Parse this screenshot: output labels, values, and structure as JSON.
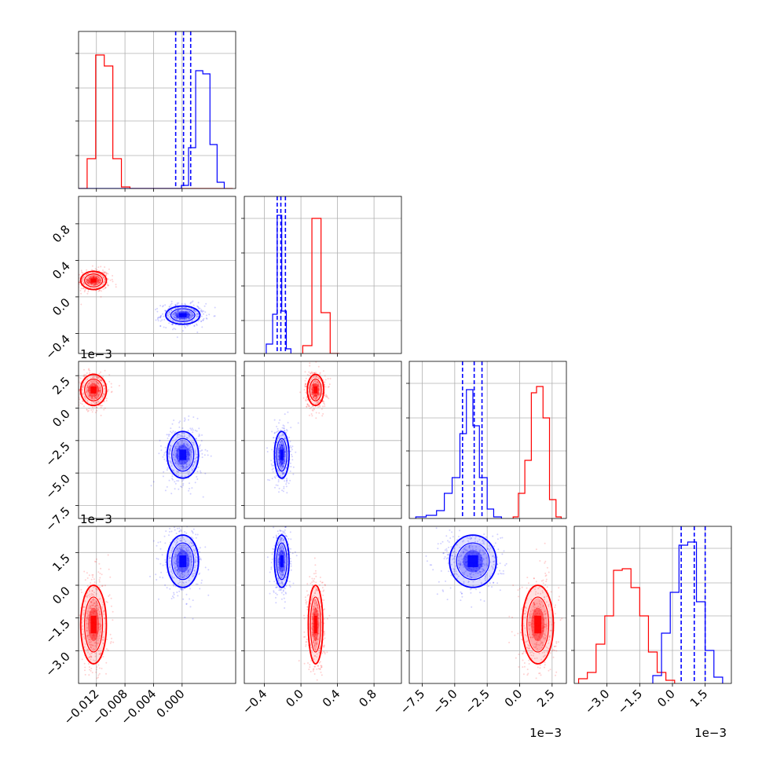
{
  "chart_data": {
    "type": "corner",
    "dimensions": 4,
    "grid": true,
    "colors": {
      "red": "#ff0000",
      "blue": "#0000ff",
      "grid": "#b0b0b0"
    },
    "diagonal": [
      {
        "xlim": [
          -0.0145,
          0.0075
        ],
        "bins_x": [
          -0.0145,
          -0.0133,
          -0.0121,
          -0.0109,
          -0.0097,
          -0.0085,
          -0.0073,
          -0.0061,
          -0.0049,
          -0.0037,
          -0.0025,
          -0.0013,
          -0.0001,
          0.0011,
          0.0023,
          0.0035,
          0.0047,
          0.0059,
          0.0071
        ],
        "red_counts": [
          0,
          0.19,
          0.85,
          0.78,
          0.19,
          0.01,
          0,
          0,
          0,
          0,
          0,
          0,
          0,
          0,
          0,
          0,
          0,
          0
        ],
        "blue_counts": [
          0,
          0,
          0,
          0,
          0,
          0,
          0,
          0,
          0,
          0,
          0,
          0,
          0,
          0.02,
          0.26,
          0.75,
          0.73,
          0.28,
          0.04
        ],
        "blue_bins_x": [
          -0.0145,
          -0.0133,
          -0.0121,
          -0.0109,
          -0.0097,
          -0.0085,
          -0.0073,
          -0.0061,
          -0.0049,
          -0.0037,
          -0.0025,
          -0.0021,
          -0.0011,
          -0.0001,
          0.0009,
          0.0019,
          0.0029,
          0.0039,
          0.0049,
          0.0059
        ],
        "quantiles": [
          -0.0009,
          0.0002,
          0.0012
        ]
      },
      {
        "xlim": [
          -0.62,
          1.1
        ],
        "red_hist": {
          "edges": [
            0.02,
            0.12,
            0.22,
            0.32,
            0.42
          ],
          "counts": [
            0.05,
            0.86,
            0.26,
            0
          ]
        },
        "blue_hist": {
          "edges": [
            -0.38,
            -0.31,
            -0.26,
            -0.21,
            -0.16,
            -0.11
          ],
          "counts": [
            0.06,
            0.25,
            0.88,
            0.27,
            0.03
          ]
        },
        "quantiles": [
          -0.26,
          -0.22,
          -0.17
        ]
      },
      {
        "xlim": [
          -0.0085,
          0.0036
        ],
        "red_hist": {
          "edges": [
            -0.0005,
            -0.0001,
            0.0004,
            0.0009,
            0.0013,
            0.0018,
            0.0023,
            0.0028,
            0.0032
          ],
          "counts": [
            0.01,
            0.16,
            0.37,
            0.8,
            0.84,
            0.64,
            0.12,
            0.01
          ]
        },
        "blue_hist": {
          "edges": [
            -0.008,
            -0.0072,
            -0.0064,
            -0.0058,
            -0.0052,
            -0.0046,
            -0.0041,
            -0.0036,
            -0.0031,
            -0.0025,
            -0.002,
            -0.0014
          ],
          "counts": [
            0.01,
            0.02,
            0.05,
            0.16,
            0.26,
            0.54,
            0.82,
            0.59,
            0.26,
            0.06,
            0.01
          ]
        },
        "quantiles": [
          -0.0044,
          -0.0035,
          -0.0029
        ]
      },
      {
        "xlim": [
          -0.0045,
          0.0027
        ],
        "red_hist": {
          "edges": [
            -0.0043,
            -0.0039,
            -0.0035,
            -0.0031,
            -0.0027,
            -0.0023,
            -0.0019,
            -0.0015,
            -0.0011,
            -0.0007,
            -0.0003,
            0.0001
          ],
          "counts": [
            0.03,
            0.07,
            0.25,
            0.43,
            0.72,
            0.73,
            0.61,
            0.43,
            0.2,
            0.07,
            0.02
          ]
        },
        "blue_hist": {
          "edges": [
            -0.0009,
            -0.0005,
            -0.0001,
            0.0003,
            0.0007,
            0.0011,
            0.0015,
            0.0019,
            0.0023
          ],
          "counts": [
            0.05,
            0.32,
            0.58,
            0.88,
            0.9,
            0.52,
            0.21,
            0.04
          ]
        },
        "quantiles": [
          0.0004,
          0.001,
          0.0015
        ]
      }
    ],
    "pairs": [
      {
        "row": 1,
        "col": 0,
        "red": {
          "mean": [
            -0.0124,
            0.18
          ],
          "std": [
            0.0009,
            0.05
          ],
          "rho": 0
        },
        "blue": {
          "mean": [
            0.0001,
            -0.2
          ],
          "std": [
            0.0012,
            0.05
          ],
          "rho": 0
        }
      },
      {
        "row": 2,
        "col": 0,
        "red": {
          "mean": [
            -0.0124,
            0.0014
          ],
          "std": [
            0.0009,
            0.0006
          ],
          "rho": 0
        },
        "blue": {
          "mean": [
            0.0001,
            -0.0036
          ],
          "std": [
            0.0011,
            0.0009
          ],
          "rho": 0
        }
      },
      {
        "row": 2,
        "col": 1,
        "red": {
          "mean": [
            0.16,
            0.0014
          ],
          "std": [
            0.045,
            0.0006
          ],
          "rho": 0
        },
        "blue": {
          "mean": [
            -0.21,
            -0.0036
          ],
          "std": [
            0.04,
            0.0009
          ],
          "rho": 0
        }
      },
      {
        "row": 3,
        "col": 0,
        "red": {
          "mean": [
            -0.0124,
            -0.0018
          ],
          "std": [
            0.0009,
            0.0009
          ],
          "rho": 0
        },
        "blue": {
          "mean": [
            0.0001,
            0.0011
          ],
          "std": [
            0.0011,
            0.0006
          ],
          "rho": 0
        }
      },
      {
        "row": 3,
        "col": 1,
        "red": {
          "mean": [
            0.16,
            -0.0018
          ],
          "std": [
            0.04,
            0.0009
          ],
          "rho": 0
        },
        "blue": {
          "mean": [
            -0.21,
            0.0011
          ],
          "std": [
            0.04,
            0.0006
          ],
          "rho": 0
        }
      },
      {
        "row": 3,
        "col": 2,
        "red": {
          "mean": [
            0.0014,
            -0.0018
          ],
          "std": [
            0.0006,
            0.0009
          ],
          "rho": 0
        },
        "blue": {
          "mean": [
            -0.0036,
            0.0011
          ],
          "std": [
            0.0009,
            0.0006
          ],
          "rho": 0
        }
      }
    ],
    "axes": {
      "x": [
        {
          "lim": [
            -0.0145,
            0.0075
          ],
          "ticks": [
            -0.012,
            -0.008,
            -0.004,
            0.0
          ],
          "labels": [
            "−0.012",
            "−0.008",
            "−0.004",
            "0.000"
          ],
          "offset": ""
        },
        {
          "lim": [
            -0.62,
            1.1
          ],
          "ticks": [
            -0.4,
            0.0,
            0.4,
            0.8
          ],
          "labels": [
            "−0.4",
            "0.0",
            "0.4",
            "0.8"
          ],
          "offset": ""
        },
        {
          "lim": [
            -0.0085,
            0.0036
          ],
          "ticks": [
            -0.0075,
            -0.005,
            -0.0025,
            0.0,
            0.0025
          ],
          "labels": [
            "−7.5",
            "−5.0",
            "−2.5",
            "0.0",
            "2.5"
          ],
          "offset": "1e−3"
        },
        {
          "lim": [
            -0.0045,
            0.0027
          ],
          "ticks": [
            -0.003,
            -0.0015,
            0.0,
            0.0015
          ],
          "labels": [
            "−3.0",
            "−1.5",
            "0.0",
            "1.5"
          ],
          "offset": "1e−3"
        }
      ],
      "y": [
        null,
        {
          "lim": [
            -0.62,
            1.1
          ],
          "ticks": [
            -0.4,
            0.0,
            0.4,
            0.8
          ],
          "labels": [
            "−0.4",
            "0.0",
            "0.4",
            "0.8"
          ],
          "offset": ""
        },
        {
          "lim": [
            -0.0085,
            0.0036
          ],
          "ticks": [
            -0.0075,
            -0.005,
            -0.0025,
            0.0,
            0.0025
          ],
          "labels": [
            "−7.5",
            "−5.0",
            "−2.5",
            "0.0",
            "2.5"
          ],
          "offset": "1e−3"
        },
        {
          "lim": [
            -0.0045,
            0.0027
          ],
          "ticks": [
            -0.003,
            -0.0015,
            0.0,
            0.0015
          ],
          "labels": [
            "−3.0",
            "−1.5",
            "0.0",
            "1.5"
          ],
          "offset": "1e−3"
        }
      ]
    }
  }
}
